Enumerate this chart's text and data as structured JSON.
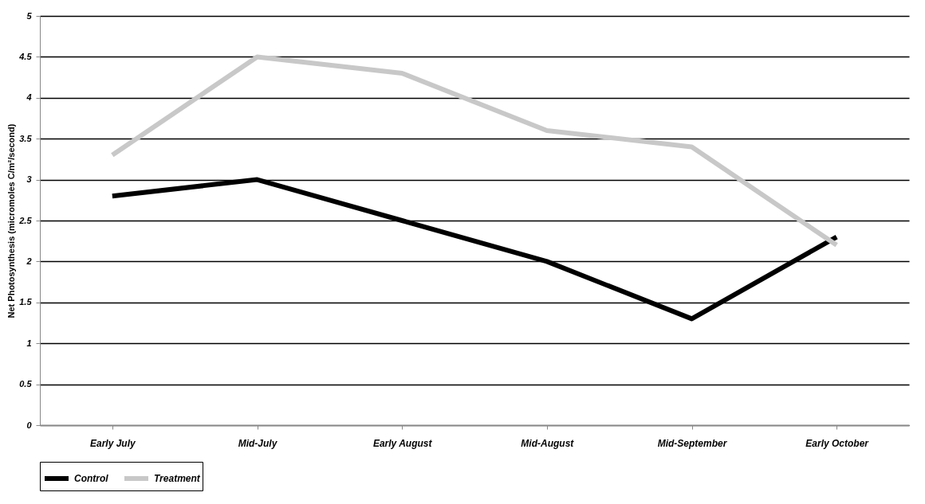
{
  "chart_data": {
    "type": "line",
    "ylabel": "Net Photosynthesis (micromoles C/m²/second)",
    "categories": [
      "Early July",
      "Mid-July",
      "Early August",
      "Mid-August",
      "Mid-September",
      "Early October"
    ],
    "series": [
      {
        "name": "Control",
        "color": "#000000",
        "values": [
          2.8,
          3.0,
          2.5,
          2.0,
          1.3,
          2.3
        ]
      },
      {
        "name": "Treatment",
        "color": "#c8c8c8",
        "values": [
          3.3,
          4.5,
          4.3,
          3.6,
          3.4,
          2.2
        ]
      }
    ],
    "ylim": [
      0,
      5
    ],
    "yticks": [
      0,
      0.5,
      1,
      1.5,
      2,
      2.5,
      3,
      3.5,
      4,
      4.5,
      5
    ],
    "grid": "y",
    "legend": "bottom",
    "marker": "none",
    "line_style": "solid"
  }
}
